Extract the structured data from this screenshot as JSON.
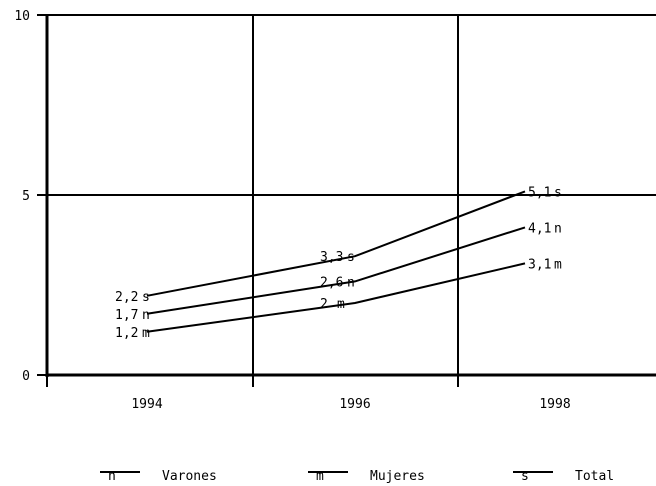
{
  "chart_data": {
    "type": "line",
    "title": "",
    "xlabel": "",
    "ylabel": "",
    "categories": [
      "1994",
      "1996",
      "1998"
    ],
    "ylim": [
      0,
      10
    ],
    "yticks": [
      "0",
      "5",
      "10"
    ],
    "grid": true,
    "legend_position": "bottom",
    "series": [
      {
        "name": "Varones",
        "marker": "n",
        "values": [
          1.7,
          2.6,
          4.1
        ],
        "labels": [
          "1,7",
          "2,6",
          "4,1"
        ]
      },
      {
        "name": "Mujeres",
        "marker": "m",
        "values": [
          1.2,
          2.0,
          3.1
        ],
        "labels": [
          "1,2",
          "2",
          "3,1"
        ]
      },
      {
        "name": "Total",
        "marker": "s",
        "values": [
          2.2,
          3.3,
          5.1
        ],
        "labels": [
          "2,2",
          "3,3",
          "5,1"
        ]
      }
    ]
  }
}
